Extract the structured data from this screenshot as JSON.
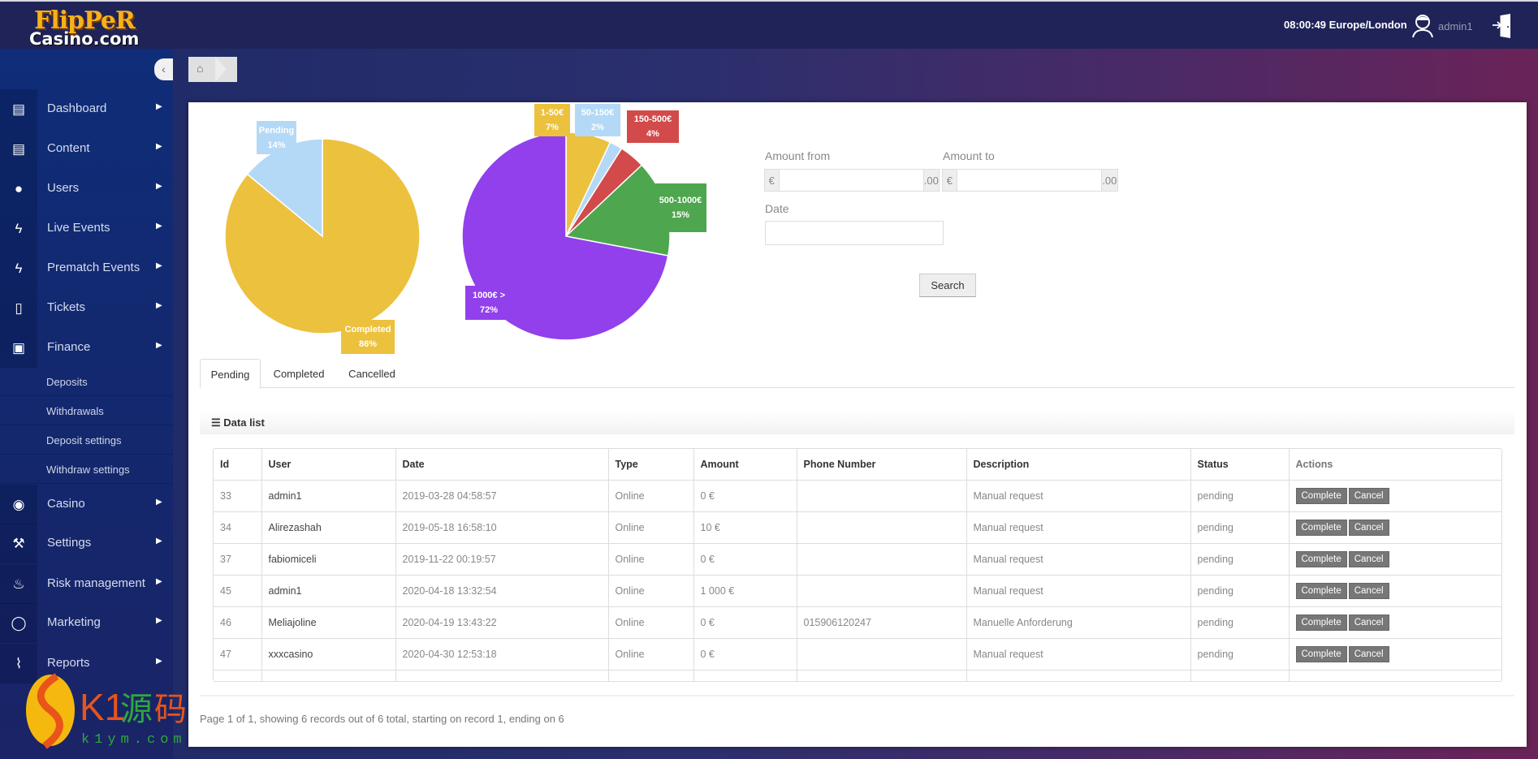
{
  "header": {
    "logo_line1": "FlipPeR",
    "logo_line2": "Casino.com",
    "clock": "08:00:49 Europe/London",
    "username": "admin1",
    "icons": [
      "user-avatar-icon",
      "logout-door-icon"
    ]
  },
  "sidebar": {
    "collapse_icon": "chevron-left-icon",
    "items": [
      {
        "label": "Dashboard",
        "icon": "book-icon"
      },
      {
        "label": "Content",
        "icon": "book-icon"
      },
      {
        "label": "Users",
        "icon": "user-icon"
      },
      {
        "label": "Live Events",
        "icon": "bolt-icon"
      },
      {
        "label": "Prematch Events",
        "icon": "bolt-icon"
      },
      {
        "label": "Tickets",
        "icon": "document-icon"
      },
      {
        "label": "Finance",
        "icon": "money-icon"
      },
      {
        "label": "Casino",
        "icon": "play-circle-icon"
      },
      {
        "label": "Settings",
        "icon": "wrench-icon"
      },
      {
        "label": "Risk management",
        "icon": "fire-icon"
      },
      {
        "label": "Marketing",
        "icon": "speech-bubble-icon"
      },
      {
        "label": "Reports",
        "icon": "paperclip-icon"
      }
    ],
    "finance_sub": [
      "Deposits",
      "Withdrawals",
      "Deposit settings",
      "Withdraw settings"
    ]
  },
  "breadcrumb": {
    "icon": "home-icon"
  },
  "chart_data": [
    {
      "type": "pie",
      "slices": [
        {
          "label": "Completed",
          "value": 86,
          "text": "86%",
          "color": "#ecc13e"
        },
        {
          "label": "Pending",
          "value": 14,
          "text": "14%",
          "color": "#b3d9f7"
        }
      ]
    },
    {
      "type": "pie",
      "slices": [
        {
          "label": "1-50€",
          "value": 7,
          "text": "7%",
          "color": "#ecc13e"
        },
        {
          "label": "50-150€",
          "value": 2,
          "text": "2%",
          "color": "#b3d9f7"
        },
        {
          "label": "150-500€",
          "value": 4,
          "text": "4%",
          "color": "#d24a4a"
        },
        {
          "label": "500-1000€",
          "value": 15,
          "text": "15%",
          "color": "#4ea64e"
        },
        {
          "label": "1000€ >",
          "value": 72,
          "text": "72%",
          "color": "#9140ec"
        }
      ]
    }
  ],
  "filters": {
    "amount_from": "Amount from",
    "amount_to": "Amount to",
    "currency": "€",
    "decimals": ".00",
    "date": "Date",
    "search": "Search"
  },
  "tabs": [
    "Pending",
    "Completed",
    "Cancelled"
  ],
  "datalist": {
    "title": "Data list",
    "icon": "list-icon"
  },
  "table": {
    "columns": [
      "Id",
      "User",
      "Date",
      "Type",
      "Amount",
      "Phone Number",
      "Description",
      "Status",
      "Actions"
    ],
    "rows": [
      [
        "33",
        "admin1",
        "2019-03-28 04:58:57",
        "Online",
        "0 €",
        "",
        "Manual request",
        "pending"
      ],
      [
        "34",
        "Alirezashah",
        "2019-05-18 16:58:10",
        "Online",
        "10 €",
        "",
        "Manual request",
        "pending"
      ],
      [
        "37",
        "fabiomiceli",
        "2019-11-22 00:19:57",
        "Online",
        "0 €",
        "",
        "Manual request",
        "pending"
      ],
      [
        "45",
        "admin1",
        "2020-04-18 13:32:54",
        "Online",
        "1 000 €",
        "",
        "Manual request",
        "pending"
      ],
      [
        "46",
        "Meliajoline",
        "2020-04-19 13:43:22",
        "Online",
        "0 €",
        "015906120247",
        "Manuelle Anforderung",
        "pending"
      ],
      [
        "47",
        "xxxcasino",
        "2020-04-30 12:53:18",
        "Online",
        "0 €",
        "",
        "Manual request",
        "pending"
      ]
    ],
    "complete_label": "Complete",
    "cancel_label": "Cancel"
  },
  "footer": "Page 1 of 1, showing 6 records out of 6 total, starting on record 1, ending on 6",
  "watermark": {
    "text": "K1源码",
    "sub": "k1ym.com"
  }
}
